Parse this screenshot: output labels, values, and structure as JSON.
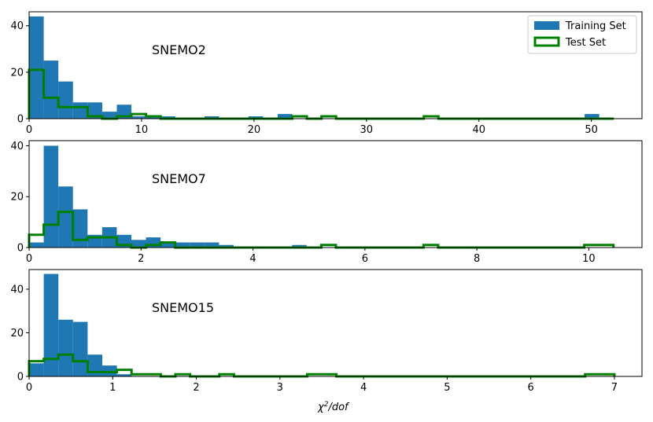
{
  "figure": {
    "xlabel_main": "χ",
    "xlabel_sup": "2",
    "xlabel_tail": "/dof"
  },
  "legend": {
    "training_label": "Training Set",
    "test_label": "Test Set"
  },
  "colors": {
    "training": "#1f77b4",
    "test": "#008000",
    "axis": "#000000",
    "background": "#ffffff"
  },
  "chart_data": [
    {
      "type": "histogram",
      "title": "SNEMO2",
      "xlabel": "",
      "ylabel": "",
      "xlim": [
        0,
        54.5
      ],
      "ylim": [
        0,
        46
      ],
      "xticks": [
        0,
        10,
        20,
        30,
        40,
        50
      ],
      "yticks": [
        0,
        20,
        40
      ],
      "bin_width": 1.3,
      "series": [
        {
          "name": "Training Set",
          "style": "filled",
          "values": [
            44,
            25,
            16,
            7,
            7,
            3,
            6,
            1,
            1,
            1,
            0,
            0,
            1,
            0,
            0,
            1,
            0,
            2,
            0,
            0,
            0,
            0,
            0,
            0,
            0,
            0,
            0,
            0,
            0,
            0,
            0,
            0,
            0,
            0,
            0,
            0,
            0,
            0,
            2,
            0
          ]
        },
        {
          "name": "Test Set",
          "style": "step",
          "values": [
            21,
            9,
            5,
            5,
            1,
            0,
            1,
            2,
            1,
            0,
            0,
            0,
            0,
            0,
            0,
            0,
            0,
            0,
            1,
            0,
            1,
            0,
            0,
            0,
            0,
            0,
            0,
            1,
            0,
            0,
            0,
            0,
            0,
            0,
            0,
            0,
            0,
            0,
            0,
            0
          ]
        }
      ]
    },
    {
      "type": "histogram",
      "title": "SNEMO7",
      "xlabel": "",
      "ylabel": "",
      "xlim": [
        0,
        10.95
      ],
      "ylim": [
        0,
        42
      ],
      "xticks": [
        0,
        2,
        4,
        6,
        8,
        10
      ],
      "yticks": [
        0,
        20,
        40
      ],
      "bin_width": 0.261,
      "series": [
        {
          "name": "Training Set",
          "style": "filled",
          "values": [
            2,
            40,
            24,
            15,
            5,
            8,
            5,
            3,
            4,
            2,
            2,
            2,
            2,
            1,
            0,
            0,
            0,
            0,
            1,
            0,
            0,
            0,
            0,
            0,
            0,
            0,
            0,
            0,
            0,
            0,
            0,
            0,
            0,
            0,
            0,
            0,
            0,
            0,
            0,
            0
          ]
        },
        {
          "name": "Test Set",
          "style": "step",
          "values": [
            5,
            9,
            14,
            3,
            4,
            4,
            1,
            0,
            1,
            2,
            0,
            0,
            0,
            0,
            0,
            0,
            0,
            0,
            0,
            0,
            1,
            0,
            0,
            0,
            0,
            0,
            0,
            1,
            0,
            0,
            0,
            0,
            0,
            0,
            0,
            0,
            0,
            0,
            1,
            1
          ]
        }
      ]
    },
    {
      "type": "histogram",
      "title": "SNEMO15",
      "xlabel": "χ²/dof",
      "ylabel": "",
      "xlim": [
        0,
        7.33
      ],
      "ylim": [
        0,
        49
      ],
      "xticks": [
        0,
        1,
        2,
        3,
        4,
        5,
        6,
        7
      ],
      "yticks": [
        0,
        20,
        40
      ],
      "bin_width": 0.175,
      "series": [
        {
          "name": "Training Set",
          "style": "filled",
          "values": [
            6,
            47,
            26,
            25,
            10,
            5,
            1,
            0,
            0,
            0,
            0,
            0,
            0,
            0,
            0,
            0,
            0,
            0,
            0,
            0,
            0,
            0,
            0,
            0,
            0,
            0,
            0,
            0,
            0,
            0,
            0,
            0,
            0,
            0,
            0,
            0,
            0,
            0,
            0,
            0
          ]
        },
        {
          "name": "Test Set",
          "style": "step",
          "values": [
            7,
            8,
            10,
            7,
            2,
            2,
            3,
            1,
            1,
            0,
            1,
            0,
            0,
            1,
            0,
            0,
            0,
            0,
            0,
            1,
            1,
            0,
            0,
            0,
            0,
            0,
            0,
            0,
            0,
            0,
            0,
            0,
            0,
            0,
            0,
            0,
            0,
            0,
            1,
            1
          ]
        }
      ]
    }
  ]
}
